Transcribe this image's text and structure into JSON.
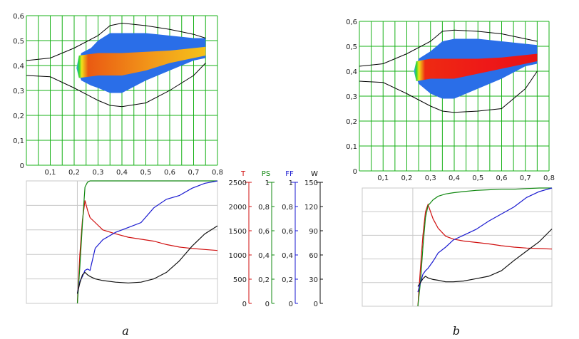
{
  "panels": [
    {
      "panel_label": "a",
      "contour": {
        "axis_x_ticks": [
          "0,1",
          "0,2",
          "0,3",
          "0,4",
          "0,5",
          "0,6",
          "0,7",
          "0,8"
        ],
        "axis_y_ticks": [
          "0",
          "0,1",
          "0,2",
          "0,3",
          "0,4",
          "0,5",
          "0,6"
        ]
      }
    },
    {
      "panel_label": "b",
      "contour": {
        "axis_x_ticks": [
          "0,1",
          "0,2",
          "0,3",
          "0,4",
          "0,5",
          "0,6",
          "0,7",
          "0,8"
        ],
        "axis_y_ticks": [
          "0",
          "0,1",
          "0,2",
          "0,3",
          "0,4",
          "0,5",
          "0,6"
        ]
      }
    }
  ],
  "right_axes": [
    {
      "label": "T",
      "color": "#d01010",
      "ticks": [
        "2500",
        "2000",
        "1500",
        "1000",
        "500",
        "0"
      ]
    },
    {
      "label": "PS",
      "color": "#118811",
      "ticks": [
        "1",
        "0,8",
        "0,6",
        "0,4",
        "0,2",
        "0"
      ]
    },
    {
      "label": "FF",
      "color": "#1a1ad0",
      "ticks": [
        "1",
        "0,8",
        "0,6",
        "0,4",
        "0,2",
        "0"
      ]
    },
    {
      "label": "W",
      "color": "#111111",
      "ticks": [
        "150",
        "120",
        "90",
        "60",
        "30",
        "0"
      ]
    }
  ],
  "colors": {
    "grid": "#17b117",
    "plume_outer": "#2a6ee8",
    "plume_core_a": "#f29a1a",
    "plume_core_b": "#ee1818",
    "shell_line": "#000000",
    "T": "#d01010",
    "PS": "#118811",
    "FF": "#1a1ad0",
    "W": "#111111"
  },
  "chart_data": [
    {
      "type": "heatmap",
      "panel": "a",
      "xlim": [
        0,
        0.8
      ],
      "ylim": [
        0,
        0.6
      ],
      "grid": true,
      "x_ticks": [
        0.1,
        0.2,
        0.3,
        0.4,
        0.5,
        0.6,
        0.7,
        0.8
      ],
      "y_ticks": [
        0,
        0.1,
        0.2,
        0.3,
        0.4,
        0.5,
        0.6
      ],
      "boundary_upper": {
        "x": [
          0,
          0.1,
          0.2,
          0.3,
          0.35,
          0.4,
          0.5,
          0.6,
          0.7,
          0.75
        ],
        "y": [
          0.42,
          0.43,
          0.47,
          0.52,
          0.56,
          0.57,
          0.56,
          0.545,
          0.525,
          0.51
        ]
      },
      "boundary_lower": {
        "x": [
          0,
          0.1,
          0.2,
          0.3,
          0.35,
          0.4,
          0.5,
          0.6,
          0.7,
          0.75
        ],
        "y": [
          0.36,
          0.355,
          0.31,
          0.26,
          0.24,
          0.235,
          0.25,
          0.3,
          0.36,
          0.41
        ]
      },
      "plume_outer": {
        "x": [
          0.21,
          0.23,
          0.27,
          0.3,
          0.35,
          0.4,
          0.5,
          0.6,
          0.7,
          0.75,
          0.75,
          0.7,
          0.6,
          0.5,
          0.4,
          0.35,
          0.3,
          0.27,
          0.23,
          0.21
        ],
        "y": [
          0.39,
          0.45,
          0.47,
          0.5,
          0.53,
          0.53,
          0.53,
          0.52,
          0.51,
          0.51,
          0.43,
          0.42,
          0.38,
          0.34,
          0.29,
          0.29,
          0.31,
          0.32,
          0.34,
          0.39
        ]
      },
      "plume_core": {
        "x": [
          0.21,
          0.22,
          0.3,
          0.4,
          0.5,
          0.6,
          0.7,
          0.75,
          0.75,
          0.7,
          0.6,
          0.5,
          0.4,
          0.3,
          0.22,
          0.21
        ],
        "y": [
          0.39,
          0.44,
          0.45,
          0.45,
          0.455,
          0.46,
          0.47,
          0.475,
          0.44,
          0.43,
          0.41,
          0.38,
          0.36,
          0.36,
          0.35,
          0.39
        ]
      }
    },
    {
      "type": "heatmap",
      "panel": "b",
      "xlim": [
        0,
        0.8
      ],
      "ylim": [
        0,
        0.6
      ],
      "grid": true,
      "x_ticks": [
        0.1,
        0.2,
        0.3,
        0.4,
        0.5,
        0.6,
        0.7,
        0.8
      ],
      "y_ticks": [
        0,
        0.1,
        0.2,
        0.3,
        0.4,
        0.5,
        0.6
      ],
      "boundary_upper": {
        "x": [
          0,
          0.1,
          0.2,
          0.3,
          0.35,
          0.4,
          0.5,
          0.6,
          0.7,
          0.75
        ],
        "y": [
          0.42,
          0.43,
          0.47,
          0.52,
          0.56,
          0.565,
          0.56,
          0.55,
          0.53,
          0.52
        ]
      },
      "boundary_lower": {
        "x": [
          0,
          0.1,
          0.2,
          0.3,
          0.35,
          0.4,
          0.5,
          0.6,
          0.7,
          0.75
        ],
        "y": [
          0.36,
          0.355,
          0.31,
          0.26,
          0.24,
          0.235,
          0.24,
          0.25,
          0.33,
          0.4
        ]
      },
      "plume_outer": {
        "x": [
          0.23,
          0.25,
          0.3,
          0.35,
          0.4,
          0.5,
          0.6,
          0.7,
          0.75,
          0.75,
          0.7,
          0.6,
          0.5,
          0.4,
          0.35,
          0.3,
          0.25,
          0.23
        ],
        "y": [
          0.4,
          0.45,
          0.48,
          0.52,
          0.53,
          0.53,
          0.52,
          0.51,
          0.505,
          0.43,
          0.42,
          0.37,
          0.33,
          0.29,
          0.29,
          0.31,
          0.35,
          0.4
        ]
      },
      "plume_core": {
        "x": [
          0.23,
          0.24,
          0.3,
          0.4,
          0.5,
          0.6,
          0.7,
          0.75,
          0.75,
          0.7,
          0.6,
          0.5,
          0.4,
          0.3,
          0.24,
          0.23
        ],
        "y": [
          0.4,
          0.44,
          0.45,
          0.45,
          0.45,
          0.455,
          0.465,
          0.47,
          0.44,
          0.43,
          0.41,
          0.39,
          0.37,
          0.37,
          0.36,
          0.4
        ]
      }
    },
    {
      "type": "line",
      "panel": "a-lower",
      "x": [
        0.2,
        0.21,
        0.22,
        0.23,
        0.24,
        0.25,
        0.27,
        0.3,
        0.35,
        0.4,
        0.45,
        0.5,
        0.55,
        0.6,
        0.65,
        0.7,
        0.75
      ],
      "series": [
        {
          "name": "T",
          "axis": "T",
          "ylim": [
            0,
            2500
          ],
          "values": [
            0,
            1000,
            1700,
            2100,
            1900,
            1750,
            1650,
            1500,
            1420,
            1350,
            1310,
            1270,
            1200,
            1150,
            1120,
            1100,
            1080
          ]
        },
        {
          "name": "PS",
          "axis": "PS",
          "ylim": [
            0,
            1
          ],
          "values": [
            0,
            0.3,
            0.65,
            0.95,
            0.99,
            1,
            1,
            1,
            1,
            1,
            1,
            1,
            1,
            1,
            1,
            1,
            1
          ]
        },
        {
          "name": "FF",
          "axis": "FF",
          "ylim": [
            0,
            1
          ],
          "values": [
            0.08,
            0.18,
            0.22,
            0.27,
            0.28,
            0.27,
            0.45,
            0.52,
            0.58,
            0.62,
            0.66,
            0.78,
            0.85,
            0.88,
            0.94,
            0.98,
            1
          ]
        },
        {
          "name": "W",
          "axis": "W",
          "ylim": [
            0,
            150
          ],
          "values": [
            12,
            25,
            35,
            38,
            35,
            33,
            30,
            28,
            26,
            25,
            26,
            30,
            38,
            52,
            70,
            85,
            95
          ]
        }
      ]
    },
    {
      "type": "line",
      "panel": "b-lower",
      "x": [
        0.22,
        0.23,
        0.24,
        0.25,
        0.26,
        0.28,
        0.3,
        0.33,
        0.36,
        0.4,
        0.45,
        0.5,
        0.55,
        0.6,
        0.65,
        0.7,
        0.75
      ],
      "series": [
        {
          "name": "T",
          "axis": "T",
          "ylim": [
            0,
            2500
          ],
          "values": [
            0,
            800,
            1500,
            2000,
            2150,
            1850,
            1650,
            1480,
            1420,
            1380,
            1350,
            1320,
            1280,
            1250,
            1230,
            1220,
            1210
          ]
        },
        {
          "name": "PS",
          "axis": "PS",
          "ylim": [
            0,
            1
          ],
          "values": [
            0,
            0.2,
            0.5,
            0.75,
            0.85,
            0.9,
            0.93,
            0.95,
            0.96,
            0.97,
            0.98,
            0.985,
            0.99,
            0.99,
            0.995,
            1,
            1
          ]
        },
        {
          "name": "FF",
          "axis": "FF",
          "ylim": [
            0,
            1
          ],
          "values": [
            0.12,
            0.2,
            0.27,
            0.3,
            0.32,
            0.38,
            0.45,
            0.5,
            0.56,
            0.6,
            0.65,
            0.72,
            0.78,
            0.84,
            0.92,
            0.97,
            1
          ]
        },
        {
          "name": "W",
          "axis": "W",
          "ylim": [
            0,
            150
          ],
          "values": [
            25,
            30,
            35,
            38,
            36,
            34,
            33,
            31,
            31,
            32,
            35,
            38,
            45,
            58,
            70,
            82,
            98
          ]
        }
      ]
    }
  ]
}
